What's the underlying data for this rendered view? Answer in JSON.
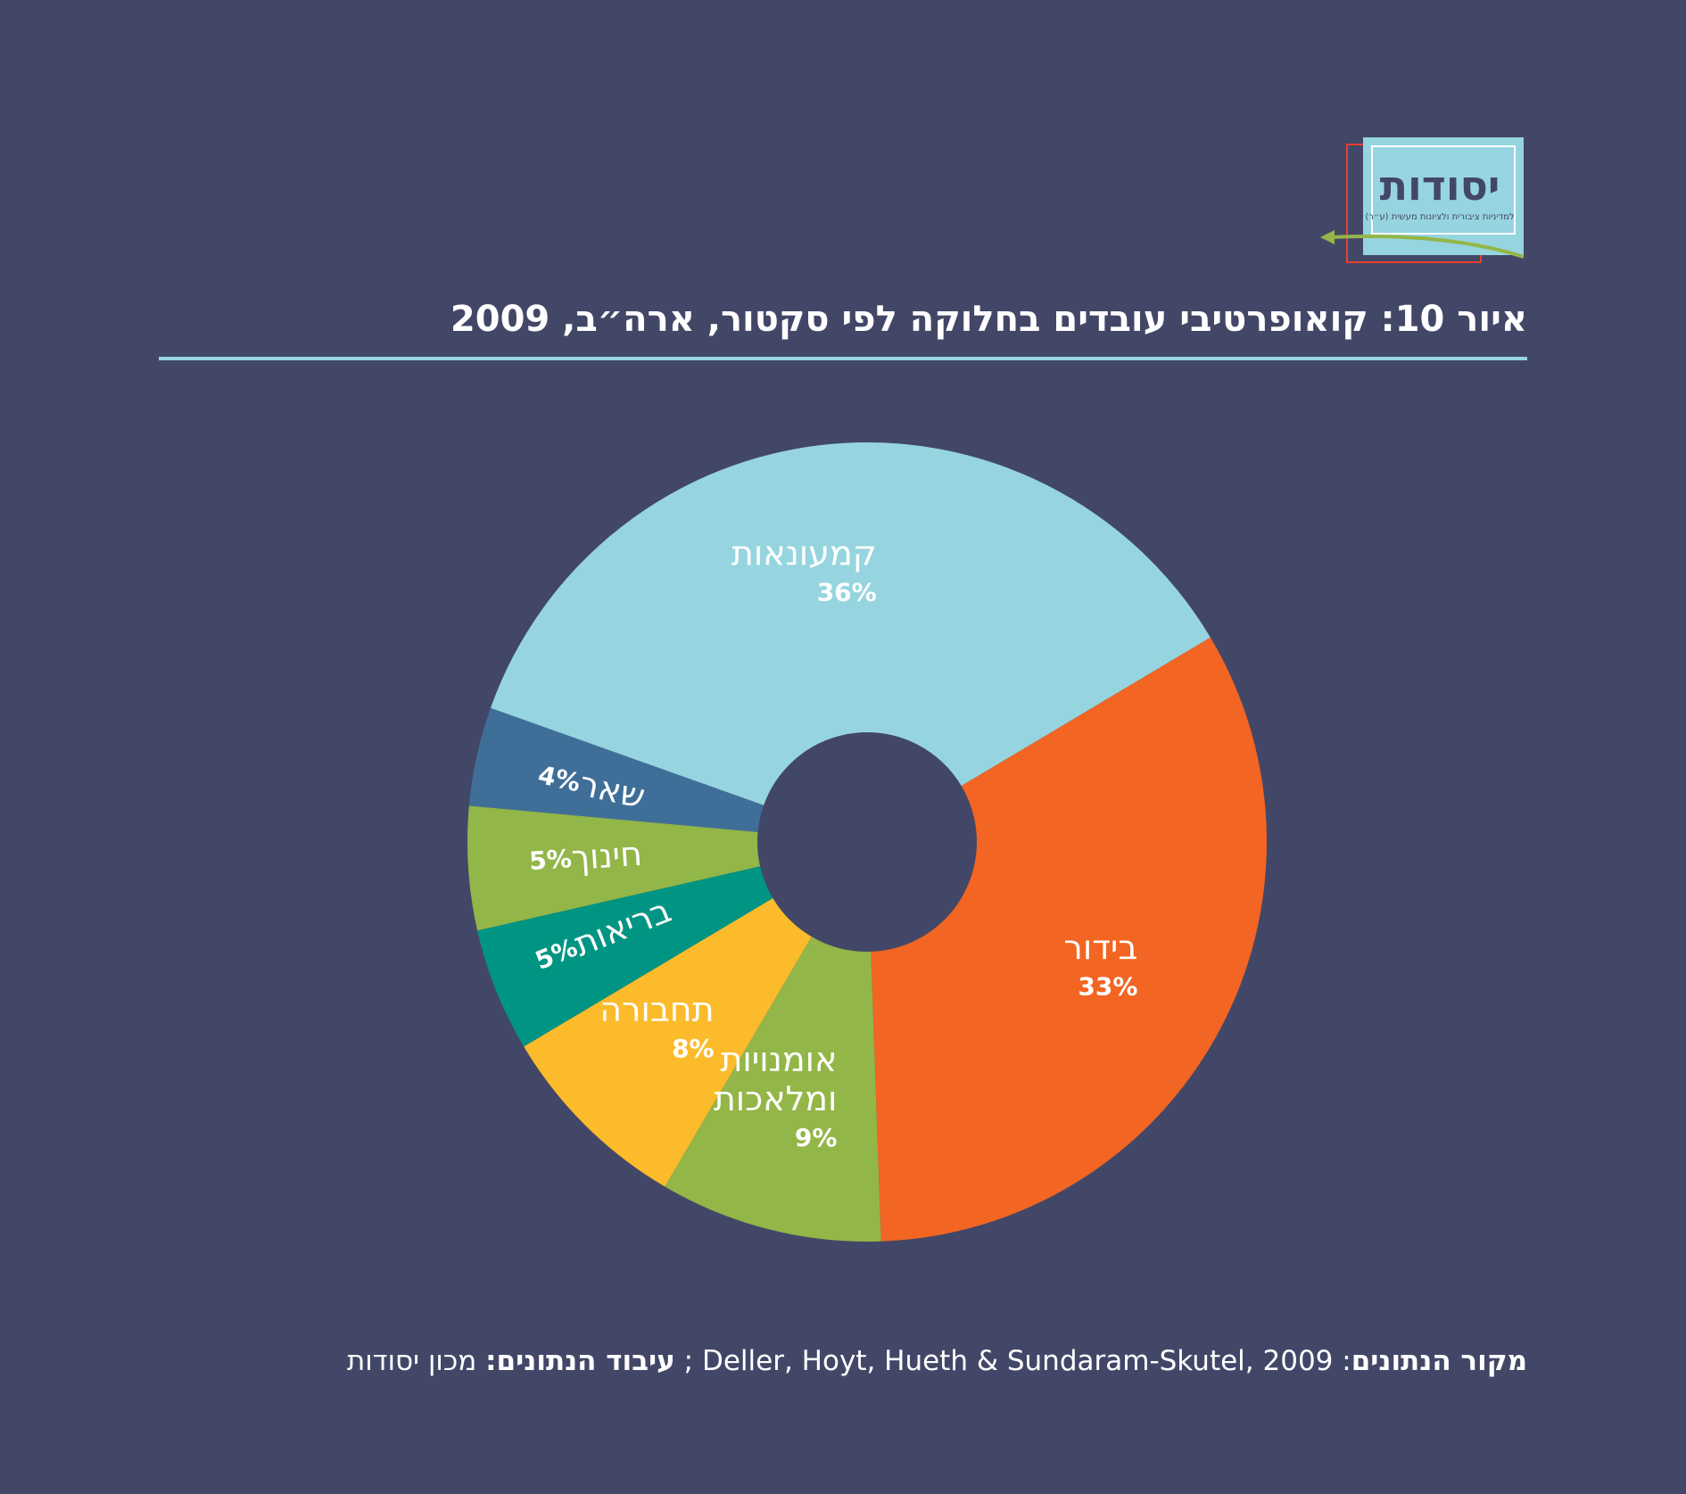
{
  "logo": {
    "word": "יסודות",
    "tagline": "למדיניות ציבורית ולציונות מעשית (ע״ר)"
  },
  "title": "איור 10: קואופרטיבי עובדים בחלוקה לפי סקטור, ארה״ב, 2009",
  "colors": {
    "background": "#434767",
    "rule": "#96d5df"
  },
  "chart_data": {
    "type": "pie",
    "donut": true,
    "title": "איור 10: קואופרטיבי עובדים בחלוקה לפי סקטור, ארה״ב, 2009",
    "slices": [
      {
        "label": "בידור",
        "label_lines": [
          "בידור"
        ],
        "value": 33,
        "value_label": "33%",
        "color": "#f26522"
      },
      {
        "label": "אומנויות ומלאכות",
        "label_lines": [
          "אומנויות",
          "ומלאכות"
        ],
        "value": 9,
        "value_label": "9%",
        "color": "#93b648"
      },
      {
        "label": "תחבורה",
        "label_lines": [
          "תחבורה"
        ],
        "value": 8,
        "value_label": "8%",
        "color": "#fbbb2b"
      },
      {
        "label": "בריאות",
        "label_lines": [
          "בריאות"
        ],
        "value": 5,
        "value_label": "5%",
        "color": "#009582"
      },
      {
        "label": "חינוך",
        "label_lines": [
          "חינוך"
        ],
        "value": 5,
        "value_label": "5%",
        "color": "#93b648"
      },
      {
        "label": "שאר",
        "label_lines": [
          "שאר"
        ],
        "value": 4,
        "value_label": "4%",
        "color": "#3f6f98"
      },
      {
        "label": "קמעונאות",
        "label_lines": [
          "קמעונאות"
        ],
        "value": 36,
        "value_label": "36%",
        "color": "#96d5df"
      }
    ]
  },
  "footer": {
    "source_label": "מקור הנתונים",
    "source_text": ": Deller, Hoyt, Hueth & Sundaram-Skutel, 2009 ; ",
    "processing_label": "עיבוד הנתונים:",
    "processing_text": " מכון יסודות"
  }
}
